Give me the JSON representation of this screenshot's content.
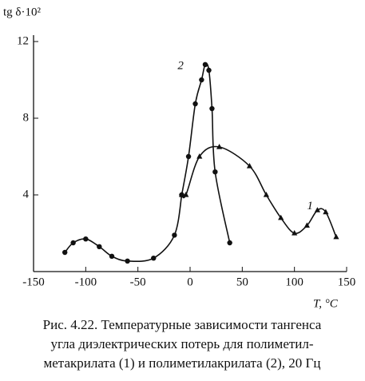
{
  "chart_data": {
    "type": "line",
    "y_label": "tg δ·10²",
    "x_label": "T, °C",
    "caption": [
      "Рис. 4.22. Температурные зависимости тангенса",
      "угла диэлектрических потерь для полиметил-",
      "метакрилата (1) и полиметилакрилата (2), 20 Гц"
    ],
    "xlim": [
      -150,
      150
    ],
    "ylim": [
      0,
      12
    ],
    "xticks": [
      -150,
      -100,
      -50,
      0,
      50,
      100,
      150
    ],
    "yticks": [
      4,
      8,
      12
    ],
    "color": "#111",
    "series": [
      {
        "marker": "circle",
        "x": [
          -120,
          -112,
          -100,
          -87,
          -75,
          -60,
          -35,
          -15,
          -8
        ],
        "values": [
          1.0,
          1.5,
          1.7,
          1.3,
          0.8,
          0.55,
          0.7,
          1.9,
          4.0
        ]
      },
      {
        "name": "2",
        "marker": "circle",
        "x": [
          -8,
          -1.5,
          5,
          11,
          14.5,
          18,
          21,
          24,
          38
        ],
        "values": [
          4.0,
          6.0,
          8.75,
          10.0,
          10.8,
          10.5,
          8.5,
          5.2,
          1.5
        ]
      },
      {
        "name": "1",
        "marker": "triangle",
        "x": [
          -8,
          -4,
          9,
          28,
          57,
          73,
          87,
          100,
          112,
          122,
          130,
          140
        ],
        "values": [
          4.0,
          4.0,
          6.0,
          6.5,
          5.5,
          4.0,
          2.8,
          2.0,
          2.4,
          3.2,
          3.1,
          1.8
        ]
      }
    ]
  }
}
